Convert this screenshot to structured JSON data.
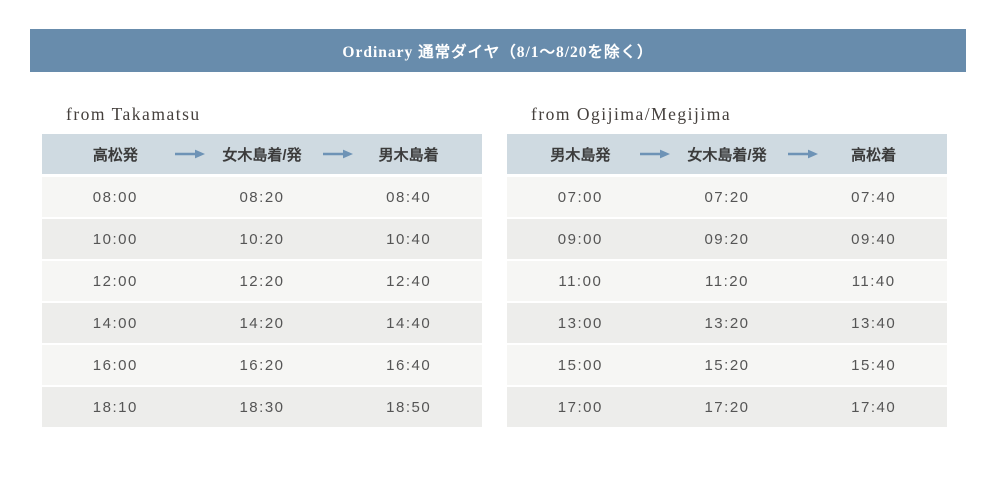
{
  "banner": {
    "title": "Ordinary 通常ダイヤ（8/1～8/20を除く）",
    "background_color": "#688CAC",
    "text_color": "#ffffff"
  },
  "colors": {
    "table_header_background": "#CFDAE1",
    "row_light": "#F6F6F4",
    "row_shaded": "#EDEDEB",
    "arrow": "#6E93B6",
    "time_text": "#555555"
  },
  "icons": {
    "arrow": "right-arrow"
  },
  "tables": [
    {
      "caption": "from Takamatsu",
      "columns": [
        "高松発",
        "女木島着/発",
        "男木島着"
      ],
      "rows": [
        [
          "08:00",
          "08:20",
          "08:40"
        ],
        [
          "10:00",
          "10:20",
          "10:40"
        ],
        [
          "12:00",
          "12:20",
          "12:40"
        ],
        [
          "14:00",
          "14:20",
          "14:40"
        ],
        [
          "16:00",
          "16:20",
          "16:40"
        ],
        [
          "18:10",
          "18:30",
          "18:50"
        ]
      ]
    },
    {
      "caption": "from Ogijima/Megijima",
      "columns": [
        "男木島発",
        "女木島着/発",
        "高松着"
      ],
      "rows": [
        [
          "07:00",
          "07:20",
          "07:40"
        ],
        [
          "09:00",
          "09:20",
          "09:40"
        ],
        [
          "11:00",
          "11:20",
          "11:40"
        ],
        [
          "13:00",
          "13:20",
          "13:40"
        ],
        [
          "15:00",
          "15:20",
          "15:40"
        ],
        [
          "17:00",
          "17:20",
          "17:40"
        ]
      ]
    }
  ]
}
